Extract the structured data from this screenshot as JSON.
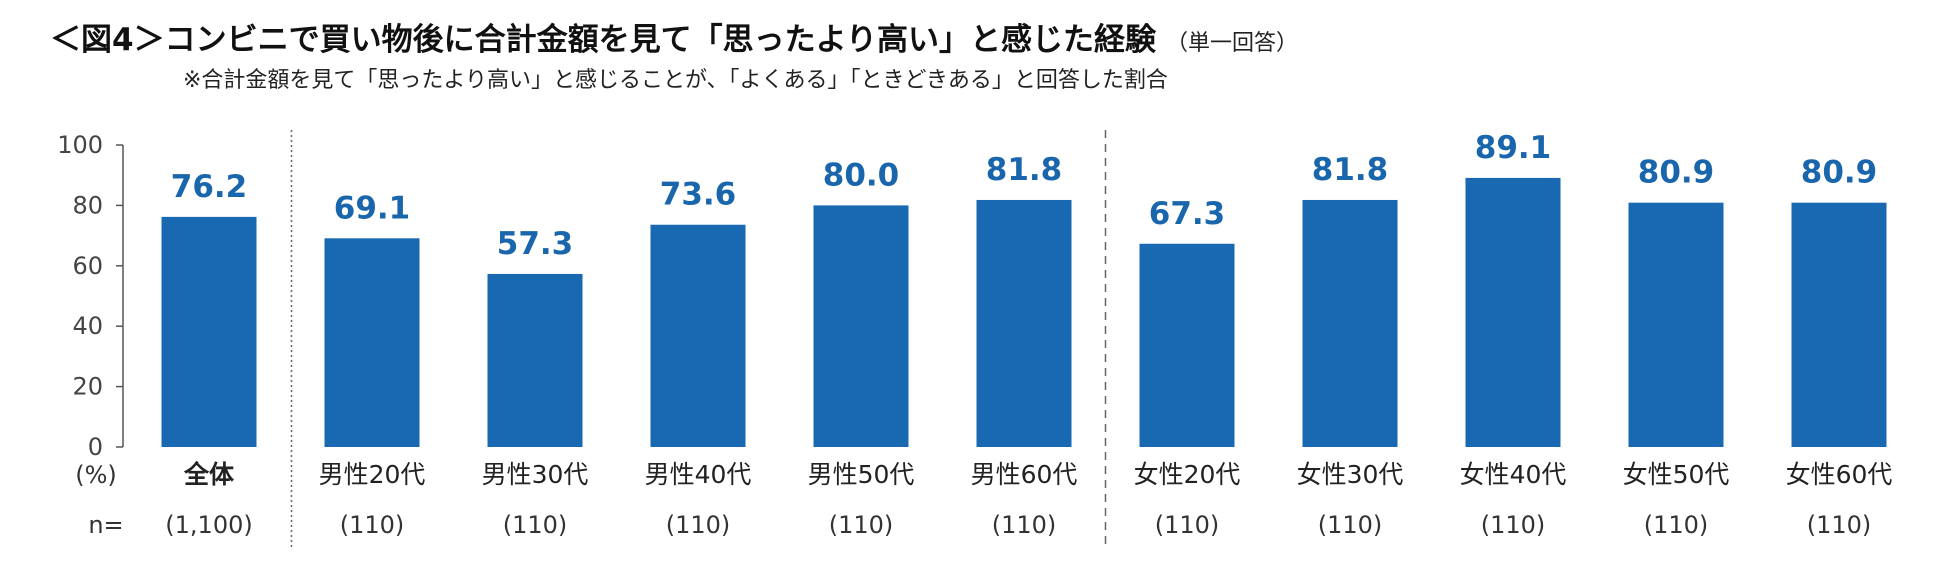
{
  "title": "＜図4＞コンビニで買い物後に合計金額を見て「思ったより高い」と感じた経験",
  "title_note": "（単一回答）",
  "subtitle": "※合計金額を見て「思ったより高い」と感じることが、「よくある」「ときどきある」と回答した割合",
  "colors": {
    "bar": "#1869b1",
    "label": "#1a66ad",
    "axis": "#555555",
    "separator": "#666666"
  },
  "chart_data": {
    "type": "bar",
    "ylabel": "(%)",
    "ylim": [
      0,
      100
    ],
    "yticks": [
      "0",
      "20",
      "40",
      "60",
      "80",
      "100"
    ],
    "n_label": "n=",
    "grid": false,
    "categories": [
      "全体",
      "男性20代",
      "男性30代",
      "男性40代",
      "男性50代",
      "男性60代",
      "女性20代",
      "女性30代",
      "女性40代",
      "女性50代",
      "女性60代"
    ],
    "values": [
      76.2,
      69.1,
      57.3,
      73.6,
      80.0,
      81.8,
      67.3,
      81.8,
      89.1,
      80.9,
      80.9
    ],
    "value_labels": [
      "76.2",
      "69.1",
      "57.3",
      "73.6",
      "80.0",
      "81.8",
      "67.3",
      "81.8",
      "89.1",
      "80.9",
      "80.9"
    ],
    "n": [
      "(1,100)",
      "(110)",
      "(110)",
      "(110)",
      "(110)",
      "(110)",
      "(110)",
      "(110)",
      "(110)",
      "(110)",
      "(110)"
    ]
  }
}
